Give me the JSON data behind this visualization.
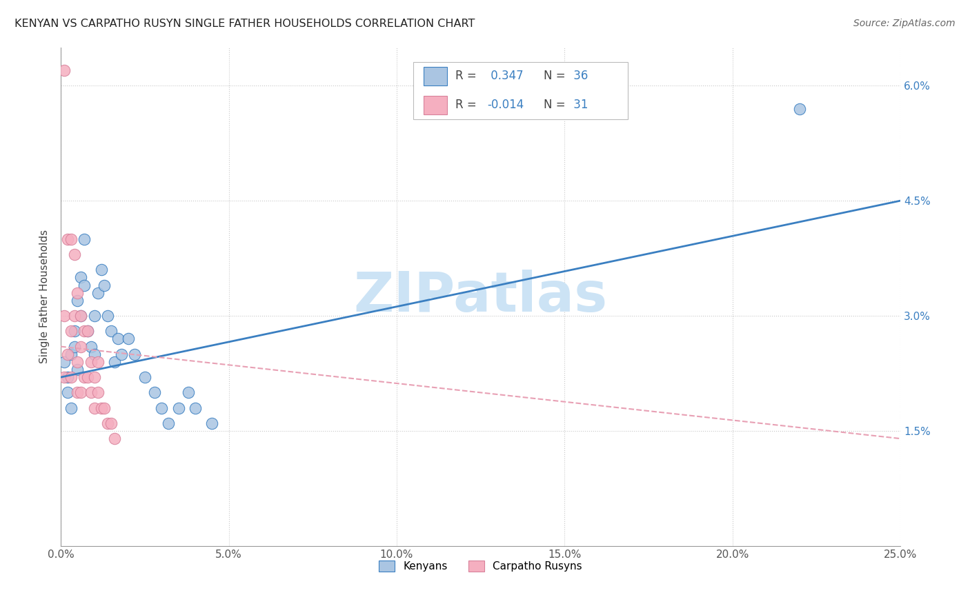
{
  "title": "KENYAN VS CARPATHO RUSYN SINGLE FATHER HOUSEHOLDS CORRELATION CHART",
  "source": "Source: ZipAtlas.com",
  "ylabel": "Single Father Households",
  "yticks": [
    "1.5%",
    "3.0%",
    "4.5%",
    "6.0%"
  ],
  "ytick_vals": [
    0.015,
    0.03,
    0.045,
    0.06
  ],
  "xlim": [
    0.0,
    0.25
  ],
  "ylim": [
    0.0,
    0.065
  ],
  "legend_labels": [
    "Kenyans",
    "Carpatho Rusyns"
  ],
  "kenyan_color": "#aac5e2",
  "carpatho_color": "#f5afc0",
  "kenyan_line_color": "#3a7fc1",
  "carpatho_line_color": "#e8a0b4",
  "watermark": "ZIPatlas",
  "watermark_color": "#cce3f5",
  "kenyan_x": [
    0.001,
    0.002,
    0.002,
    0.003,
    0.003,
    0.004,
    0.004,
    0.005,
    0.005,
    0.006,
    0.006,
    0.007,
    0.007,
    0.008,
    0.009,
    0.01,
    0.01,
    0.011,
    0.012,
    0.013,
    0.014,
    0.015,
    0.016,
    0.017,
    0.018,
    0.02,
    0.022,
    0.025,
    0.028,
    0.03,
    0.032,
    0.035,
    0.038,
    0.04,
    0.045,
    0.22
  ],
  "kenyan_y": [
    0.024,
    0.02,
    0.022,
    0.025,
    0.018,
    0.028,
    0.026,
    0.032,
    0.023,
    0.035,
    0.03,
    0.04,
    0.034,
    0.028,
    0.026,
    0.03,
    0.025,
    0.033,
    0.036,
    0.034,
    0.03,
    0.028,
    0.024,
    0.027,
    0.025,
    0.027,
    0.025,
    0.022,
    0.02,
    0.018,
    0.016,
    0.018,
    0.02,
    0.018,
    0.016,
    0.057
  ],
  "carpatho_x": [
    0.001,
    0.001,
    0.001,
    0.002,
    0.002,
    0.003,
    0.003,
    0.003,
    0.004,
    0.004,
    0.005,
    0.005,
    0.005,
    0.006,
    0.006,
    0.006,
    0.007,
    0.007,
    0.008,
    0.008,
    0.009,
    0.009,
    0.01,
    0.01,
    0.011,
    0.011,
    0.012,
    0.013,
    0.014,
    0.015,
    0.016
  ],
  "carpatho_y": [
    0.062,
    0.03,
    0.022,
    0.04,
    0.025,
    0.04,
    0.028,
    0.022,
    0.038,
    0.03,
    0.033,
    0.024,
    0.02,
    0.03,
    0.026,
    0.02,
    0.028,
    0.022,
    0.028,
    0.022,
    0.024,
    0.02,
    0.022,
    0.018,
    0.024,
    0.02,
    0.018,
    0.018,
    0.016,
    0.016,
    0.014
  ],
  "kenyan_line_x": [
    0.0,
    0.25
  ],
  "kenyan_line_y": [
    0.022,
    0.045
  ],
  "carpatho_line_x": [
    0.0,
    0.25
  ],
  "carpatho_line_y": [
    0.026,
    0.014
  ]
}
